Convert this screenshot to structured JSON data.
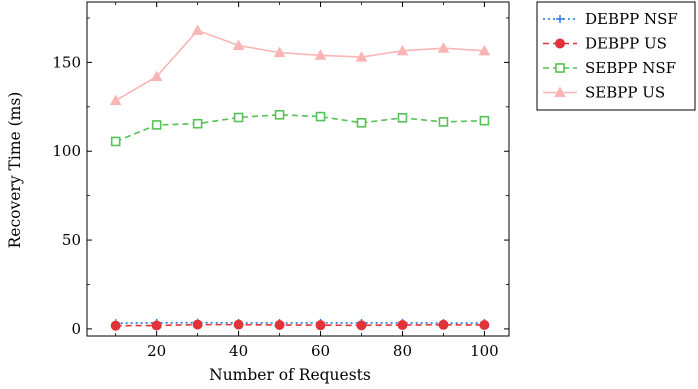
{
  "chart_data": {
    "type": "line",
    "xlabel": "Number of Requests",
    "ylabel": "Recovery Time (ms)",
    "xlim": [
      3,
      106
    ],
    "ylim": [
      -4,
      184
    ],
    "x_ticks": [
      20,
      40,
      60,
      80,
      100
    ],
    "y_ticks": [
      0,
      50,
      100,
      150
    ],
    "grid": false,
    "legend_position": "outside-top-right",
    "x": [
      10,
      20,
      30,
      40,
      50,
      60,
      70,
      80,
      90,
      100
    ],
    "series": [
      {
        "name": "DEBPP NSF",
        "color": "#1f77e4",
        "line_style": "dotted",
        "marker": "plus",
        "values": [
          3.2,
          3.4,
          3.5,
          3.4,
          3.3,
          3.4,
          3.3,
          3.4,
          3.3,
          3.3
        ]
      },
      {
        "name": "DEBPP US",
        "color": "#e0333a",
        "line_style": "dashed",
        "marker": "circle",
        "values": [
          1.8,
          1.9,
          2.4,
          2.4,
          2.2,
          2.1,
          2.0,
          2.2,
          2.3,
          2.2
        ]
      },
      {
        "name": "SEBPP NSF",
        "color": "#55c255",
        "line_style": "dashed",
        "marker": "square",
        "values": [
          105.5,
          114.8,
          115.5,
          119.0,
          120.5,
          119.5,
          116.0,
          118.8,
          116.5,
          117.2
        ]
      },
      {
        "name": "SEBPP US",
        "color": "#f9b4b4",
        "line_style": "solid",
        "marker": "triangle",
        "values": [
          128.5,
          142.0,
          168.0,
          159.5,
          155.5,
          154.0,
          153.0,
          156.5,
          158.0,
          156.5
        ]
      }
    ]
  }
}
